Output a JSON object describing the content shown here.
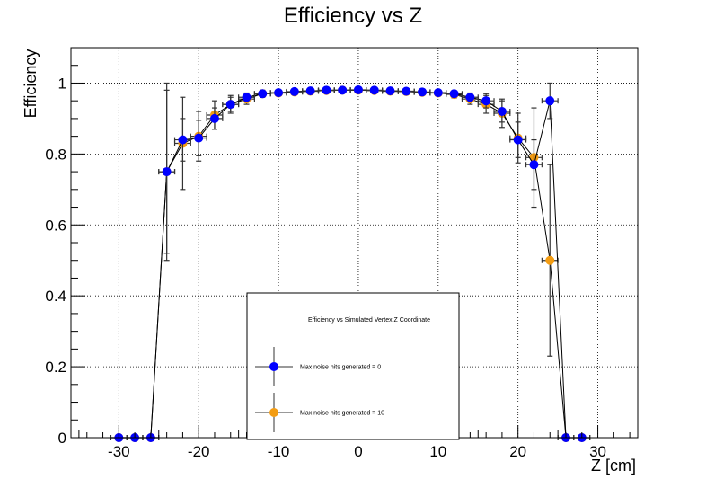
{
  "chart_data": {
    "type": "scatter",
    "title": "Efficiency vs Z",
    "xlabel": "Z [cm]",
    "ylabel": "Efficiency",
    "xlim": [
      -36,
      35
    ],
    "ylim": [
      0,
      1.1
    ],
    "xticks": [
      -30,
      -20,
      -10,
      0,
      10,
      20,
      30
    ],
    "yticks": [
      0,
      0.2,
      0.4,
      0.6,
      0.8,
      1
    ],
    "ytick_labels": [
      "0",
      "0.2",
      "0.4",
      "0.6",
      "0.8",
      "1"
    ],
    "grid": true,
    "legend": {
      "title": "Efficiency vs Simulated Vertex Z Coordinate",
      "placement": "bottom-center"
    },
    "series": [
      {
        "name": "Max noise hits generated = 0",
        "color": "#0000ff",
        "x": [
          -30,
          -28,
          -26,
          -24,
          -22,
          -20,
          -18,
          -16,
          -14,
          -12,
          -10,
          -8,
          -6,
          -4,
          -2,
          0,
          2,
          4,
          6,
          8,
          10,
          12,
          14,
          16,
          18,
          20,
          22,
          24,
          26,
          28
        ],
        "y": [
          0,
          0,
          0,
          0.75,
          0.84,
          0.845,
          0.9,
          0.94,
          0.96,
          0.97,
          0.973,
          0.976,
          0.978,
          0.98,
          0.98,
          0.981,
          0.98,
          0.978,
          0.977,
          0.975,
          0.973,
          0.97,
          0.96,
          0.95,
          0.92,
          0.84,
          0.77,
          0.95,
          0,
          0
        ],
        "yerr": [
          0,
          0,
          0,
          0.25,
          0.06,
          0.05,
          0.03,
          0.02,
          0.012,
          0.008,
          0.006,
          0.005,
          0.004,
          0.004,
          0.004,
          0.004,
          0.004,
          0.004,
          0.004,
          0.005,
          0.006,
          0.008,
          0.012,
          0.02,
          0.03,
          0.05,
          0.07,
          0.05,
          0,
          0
        ]
      },
      {
        "name": "Max noise hits generated = 10",
        "color": "#f39c12",
        "x": [
          -30,
          -28,
          -26,
          -24,
          -22,
          -20,
          -18,
          -16,
          -14,
          -12,
          -10,
          -8,
          -6,
          -4,
          -2,
          0,
          2,
          4,
          6,
          8,
          10,
          12,
          14,
          16,
          18,
          20,
          22,
          24,
          26,
          28
        ],
        "y": [
          0,
          0,
          0,
          0.75,
          0.83,
          0.85,
          0.91,
          0.94,
          0.955,
          0.97,
          0.972,
          0.975,
          0.977,
          0.979,
          0.98,
          0.98,
          0.979,
          0.977,
          0.976,
          0.974,
          0.972,
          0.968,
          0.955,
          0.94,
          0.915,
          0.845,
          0.79,
          0.5,
          0,
          0
        ],
        "yerr": [
          0,
          0,
          0,
          0.23,
          0.13,
          0.07,
          0.04,
          0.025,
          0.015,
          0.01,
          0.008,
          0.006,
          0.005,
          0.005,
          0.005,
          0.005,
          0.005,
          0.005,
          0.005,
          0.006,
          0.008,
          0.01,
          0.015,
          0.025,
          0.04,
          0.07,
          0.14,
          0.27,
          0,
          0
        ]
      }
    ]
  }
}
